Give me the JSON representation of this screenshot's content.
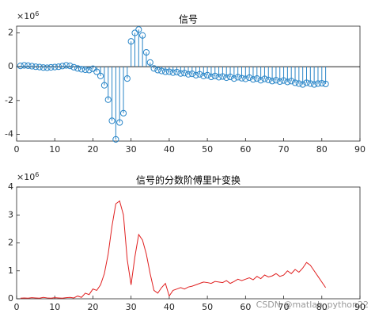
{
  "chart_data": [
    {
      "type": "stem",
      "title": "信号",
      "y_multiplier": "×10",
      "y_multiplier_exp": "6",
      "color": "#2a86c8",
      "x": [
        1,
        2,
        3,
        4,
        5,
        6,
        7,
        8,
        9,
        10,
        11,
        12,
        13,
        14,
        15,
        16,
        17,
        18,
        19,
        20,
        21,
        22,
        23,
        24,
        25,
        26,
        27,
        28,
        29,
        30,
        31,
        32,
        33,
        34,
        35,
        36,
        37,
        38,
        39,
        40,
        41,
        42,
        43,
        44,
        45,
        46,
        47,
        48,
        49,
        50,
        51,
        52,
        53,
        54,
        55,
        56,
        57,
        58,
        59,
        60,
        61,
        62,
        63,
        64,
        65,
        66,
        67,
        68,
        69,
        70,
        71,
        72,
        73,
        74,
        75,
        76,
        77,
        78,
        79,
        80,
        81
      ],
      "values": [
        0.05,
        0.08,
        0.06,
        0.03,
        0.0,
        -0.02,
        -0.05,
        -0.06,
        -0.04,
        -0.02,
        0.0,
        0.04,
        0.08,
        0.05,
        -0.03,
        -0.1,
        -0.15,
        -0.18,
        -0.2,
        -0.12,
        -0.3,
        -0.55,
        -1.1,
        -1.95,
        -3.2,
        -4.3,
        -3.3,
        -2.75,
        -0.7,
        1.5,
        2.0,
        2.2,
        1.85,
        0.85,
        0.25,
        -0.1,
        -0.2,
        -0.25,
        -0.3,
        -0.3,
        -0.35,
        -0.32,
        -0.4,
        -0.38,
        -0.45,
        -0.42,
        -0.5,
        -0.45,
        -0.55,
        -0.5,
        -0.6,
        -0.55,
        -0.62,
        -0.58,
        -0.65,
        -0.6,
        -0.7,
        -0.62,
        -0.68,
        -0.72,
        -0.65,
        -0.75,
        -0.7,
        -0.8,
        -0.72,
        -0.78,
        -0.85,
        -0.8,
        -0.88,
        -0.82,
        -0.9,
        -0.85,
        -0.95,
        -1.0,
        -1.05,
        -0.95,
        -1.0,
        -1.05,
        -1.0,
        -0.98,
        -1.02
      ],
      "xlim": [
        0,
        90
      ],
      "xticks": [
        0,
        10,
        20,
        30,
        40,
        50,
        60,
        70,
        80,
        90
      ],
      "ylim": [
        -4.4,
        2.4
      ],
      "yticks": [
        -4,
        -2,
        0,
        2
      ]
    },
    {
      "type": "line",
      "title": "信号的分数阶傅里叶变换",
      "y_multiplier": "×10",
      "y_multiplier_exp": "6",
      "color": "#e02020",
      "x": [
        1,
        2,
        3,
        4,
        5,
        6,
        7,
        8,
        9,
        10,
        11,
        12,
        13,
        14,
        15,
        16,
        17,
        18,
        19,
        20,
        21,
        22,
        23,
        24,
        25,
        26,
        27,
        28,
        29,
        30,
        31,
        32,
        33,
        34,
        35,
        36,
        37,
        38,
        39,
        40,
        41,
        42,
        43,
        44,
        45,
        46,
        47,
        48,
        49,
        50,
        51,
        52,
        53,
        54,
        55,
        56,
        57,
        58,
        59,
        60,
        61,
        62,
        63,
        64,
        65,
        66,
        67,
        68,
        69,
        70,
        71,
        72,
        73,
        74,
        75,
        76,
        77,
        78,
        79,
        80,
        81
      ],
      "values": [
        0.02,
        0.03,
        0.02,
        0.04,
        0.03,
        0.02,
        0.05,
        0.03,
        0.02,
        0.04,
        0.03,
        0.02,
        0.04,
        0.05,
        0.03,
        0.1,
        0.05,
        0.2,
        0.15,
        0.35,
        0.3,
        0.5,
        0.9,
        1.6,
        2.6,
        3.4,
        3.5,
        3.0,
        1.4,
        0.5,
        1.5,
        2.3,
        2.1,
        1.6,
        0.9,
        0.3,
        0.2,
        0.4,
        0.55,
        0.1,
        0.3,
        0.35,
        0.4,
        0.35,
        0.42,
        0.45,
        0.5,
        0.55,
        0.6,
        0.58,
        0.55,
        0.62,
        0.6,
        0.58,
        0.65,
        0.55,
        0.62,
        0.7,
        0.65,
        0.7,
        0.75,
        0.68,
        0.8,
        0.72,
        0.85,
        0.78,
        0.82,
        0.9,
        0.8,
        0.85,
        1.0,
        0.9,
        1.05,
        0.95,
        1.1,
        1.3,
        1.2,
        1.0,
        0.8,
        0.6,
        0.4
      ],
      "xlim": [
        0,
        90
      ],
      "xticks": [
        0,
        10,
        20,
        30,
        40,
        50,
        60,
        70,
        80,
        90
      ],
      "ylim": [
        0,
        4
      ],
      "yticks": [
        0,
        1,
        2,
        3,
        4
      ]
    }
  ],
  "watermark": "CSDN @matlab_python22"
}
